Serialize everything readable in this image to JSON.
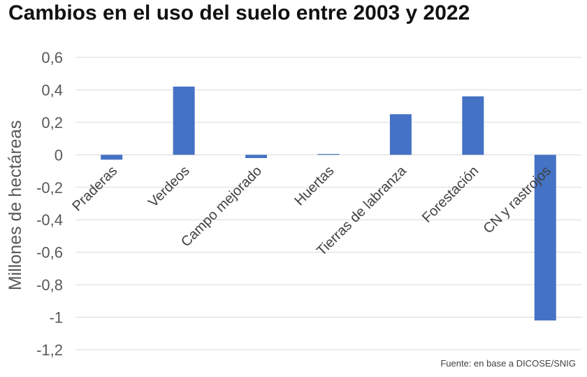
{
  "chart_data": {
    "type": "bar",
    "title": "Cambios en el uso del suelo entre 2003 y 2022",
    "ylabel": "Millones de hectáreas",
    "categories": [
      "Praderas",
      "Verdeos",
      "Campo mejorado",
      "Huertas",
      "Tierras de labranza",
      "Forestación",
      "CN y rastrojos"
    ],
    "series": [
      {
        "values": [
          -0.03,
          0.42,
          -0.02,
          0.005,
          0.25,
          0.36,
          -1.02
        ]
      }
    ],
    "ylim": [
      -1.2,
      0.6
    ],
    "yticks": [
      0.6,
      0.4,
      0.2,
      0,
      -0.2,
      -0.4,
      -0.6,
      -0.8,
      -1,
      -1.2
    ],
    "ytick_labels": [
      "0,6",
      "0,4",
      "0,2",
      "0",
      "-0,2",
      "-0,4",
      "-0,6",
      "-0,8",
      "-1",
      "-1,2"
    ],
    "grid": true,
    "bar_color": "#4472c4",
    "source": "Fuente: en base a DICOSE/SNIG"
  }
}
